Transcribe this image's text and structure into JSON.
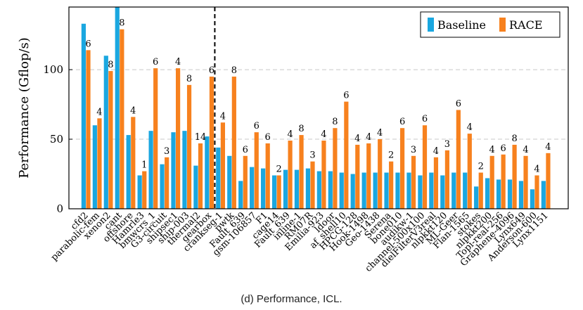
{
  "caption": "(d) Performance, ICL.",
  "colors": {
    "baseline": "#1aa7e0",
    "race": "#f7811e"
  },
  "chart_data": {
    "type": "bar",
    "ylabel": "Performance (Gflop/s)",
    "xlabel": "",
    "ylim": [
      0,
      145
    ],
    "yticks": [
      0,
      50,
      100
    ],
    "grid": "horizontal-dashed",
    "legend_position": "top-right",
    "divider_after_category": "gearbox",
    "categories": [
      "cfd2",
      "parabolic-fem",
      "xenon2",
      "cant",
      "offshore",
      "Hamrle3",
      "bmwcrs_1",
      "G3-circuit",
      "shipsec1",
      "ship-003",
      "thermal2",
      "gearbox",
      "crankseg-1",
      "pwtk",
      "Fault_639",
      "gsm-106857",
      "F1",
      "cage14",
      "Fault_639",
      "inline-1",
      "RM07R",
      "Emilia-923",
      "ldoor",
      "af_shell10",
      "HPCG-128",
      "Hook-1498",
      "Geo-1438",
      "Serena",
      "bone010",
      "audikw-1",
      "channel-500x100",
      "dielFilterV3real",
      "nlpkkt120",
      "ML-Geer",
      "Flan-1565",
      "stokes",
      "nlpkkt200",
      "Topi-real-256",
      "Graphene-4096",
      "Lynx649",
      "Anderson-600",
      "Lynx1151"
    ],
    "series": [
      {
        "name": "Baseline",
        "values": [
          133,
          60,
          110,
          147,
          53,
          24,
          56,
          32,
          55,
          56,
          31,
          52,
          44,
          38,
          20,
          30,
          29,
          24,
          28,
          28,
          29,
          27,
          27,
          26,
          25,
          26,
          26,
          26,
          26,
          26,
          24,
          26,
          24,
          26,
          26,
          16,
          22,
          21,
          21,
          20,
          14,
          20
        ]
      },
      {
        "name": "RACE",
        "values": [
          114,
          65,
          99,
          129,
          66,
          27,
          101,
          37,
          101,
          89,
          47,
          95,
          62,
          95,
          38,
          55,
          47,
          24,
          49,
          53,
          34,
          49,
          58,
          77,
          46,
          47,
          50,
          34,
          58,
          38,
          60,
          37,
          42,
          71,
          54,
          26,
          38,
          39,
          46,
          38,
          24,
          40
        ]
      }
    ],
    "annotations": [
      "6",
      "4",
      "8",
      "8",
      "4",
      "1",
      "6",
      "3",
      "4",
      "8",
      "14",
      "6",
      "4",
      "8",
      "6",
      "6",
      "6",
      "2",
      "4",
      "8",
      "3",
      "4",
      "8",
      "6",
      "4",
      "4",
      "4",
      "2",
      "6",
      "3",
      "6",
      "4",
      "3",
      "6",
      "4",
      "2",
      "4",
      "6",
      "8",
      "4",
      "4",
      "4"
    ]
  }
}
